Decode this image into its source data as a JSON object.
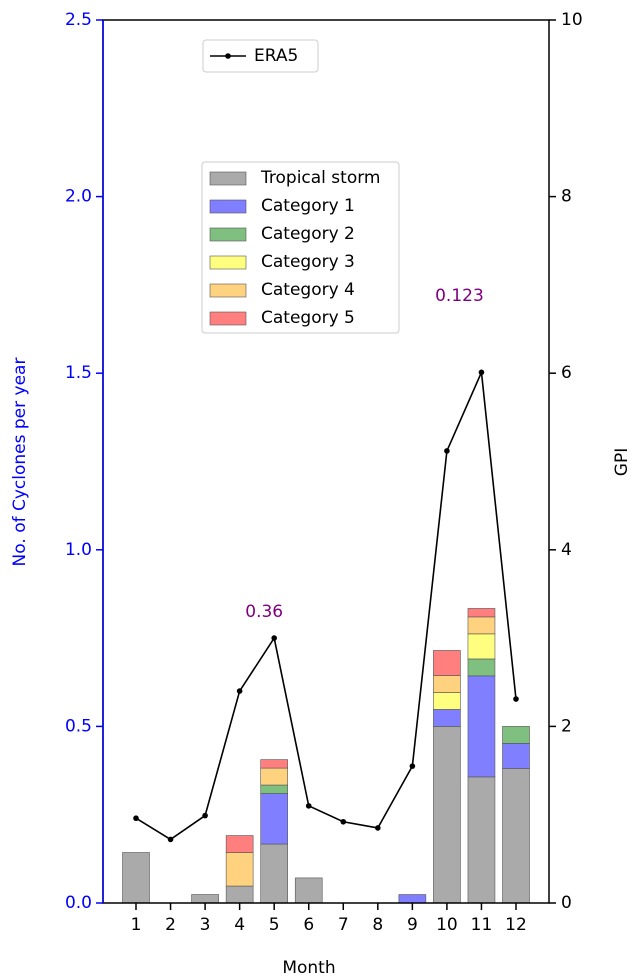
{
  "chart_data": {
    "type": "bar",
    "x_label": "Month",
    "y_label": "No. of Cyclones per year",
    "y2_label": "GPI",
    "categories": [
      "1",
      "2",
      "3",
      "4",
      "5",
      "6",
      "7",
      "8",
      "9",
      "10",
      "11",
      "12"
    ],
    "series": [
      {
        "name": "Tropical storm",
        "color": "#aaaaaa",
        "values": [
          0.143,
          0,
          0.024,
          0.048,
          0.167,
          0.071,
          0,
          0,
          0,
          0.5,
          0.357,
          0.381
        ]
      },
      {
        "name": "Category 1",
        "color": "#7f7fff",
        "values": [
          0,
          0,
          0,
          0,
          0.143,
          0,
          0,
          0,
          0.024,
          0.048,
          0.286,
          0.071
        ]
      },
      {
        "name": "Category 2",
        "color": "#7fbf7f",
        "values": [
          0,
          0,
          0,
          0,
          0.024,
          0,
          0,
          0,
          0,
          0,
          0.048,
          0.048
        ]
      },
      {
        "name": "Category 3",
        "color": "#ffff7f",
        "values": [
          0,
          0,
          0,
          0,
          0,
          0,
          0,
          0,
          0,
          0.048,
          0.071,
          0
        ]
      },
      {
        "name": "Category 4",
        "color": "#ffd27f",
        "values": [
          0,
          0,
          0,
          0.095,
          0.048,
          0,
          0,
          0,
          0,
          0.048,
          0.048,
          0
        ]
      },
      {
        "name": "Category 5",
        "color": "#ff7f7f",
        "values": [
          0,
          0,
          0,
          0.048,
          0.024,
          0,
          0,
          0,
          0,
          0.071,
          0.024,
          0
        ]
      },
      {
        "name": "ERA5",
        "type": "line",
        "axis": "y2",
        "color": "#000000",
        "values": [
          0.96,
          0.72,
          0.99,
          2.4,
          3.0,
          1.1,
          0.92,
          0.85,
          1.55,
          5.12,
          6.01,
          2.31
        ]
      }
    ],
    "annotations": [
      "0.36",
      "0.123"
    ],
    "annotation_color": "#800080",
    "left_axis_color": "#0000ff",
    "ylim": [
      0,
      2.5
    ],
    "yticks": [
      {
        "value": 0,
        "label": "0.0"
      },
      0.5,
      {
        "value": 1,
        "label": "1.0"
      },
      1.5,
      {
        "value": 2,
        "label": "2.0"
      },
      2.5
    ],
    "y2lim": [
      0,
      10
    ],
    "y2ticks": [
      0,
      2,
      4,
      6,
      8,
      10
    ]
  }
}
